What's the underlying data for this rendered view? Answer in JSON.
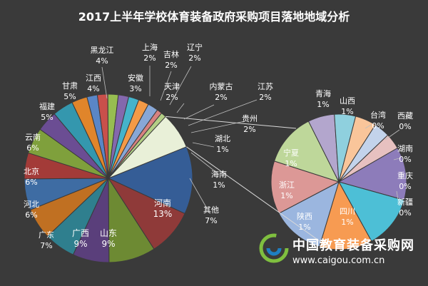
{
  "title": "2017上半年学校体育装备政府采购项目落地地域分析",
  "chart_data": {
    "type": "bar-of-pie",
    "main_pie": [
      {
        "label": "河南",
        "pct": "13%",
        "value": 13,
        "color": "#355d96"
      },
      {
        "label": "山东",
        "pct": "9%",
        "value": 9,
        "color": "#8f3a39"
      },
      {
        "label": "广西",
        "pct": "9%",
        "value": 9,
        "color": "#6d8a33"
      },
      {
        "label": "广东",
        "pct": "7%",
        "value": 7,
        "color": "#5a3f7b"
      },
      {
        "label": "河北",
        "pct": "6%",
        "value": 6,
        "color": "#2f7f8e"
      },
      {
        "label": "北京",
        "pct": "6%",
        "value": 6,
        "color": "#c07022"
      },
      {
        "label": "云南",
        "pct": "6%",
        "value": 6,
        "color": "#3e6ca3"
      },
      {
        "label": "福建",
        "pct": "5%",
        "value": 5,
        "color": "#a33b38"
      },
      {
        "label": "甘肃",
        "pct": "5%",
        "value": 5,
        "color": "#7fa03c"
      },
      {
        "label": "江西",
        "pct": "4%",
        "value": 4,
        "color": "#6b4d93"
      },
      {
        "label": "黑龙江",
        "pct": "4%",
        "value": 4,
        "color": "#3497ae"
      },
      {
        "label": "安徽",
        "pct": "3%",
        "value": 3,
        "color": "#e0852b"
      },
      {
        "label": "上海",
        "pct": "2%",
        "value": 2,
        "color": "#5a86c6"
      },
      {
        "label": "吉林",
        "pct": "2%",
        "value": 2,
        "color": "#c9504b"
      },
      {
        "label": "辽宁",
        "pct": "2%",
        "value": 2,
        "color": "#97bd51"
      },
      {
        "label": "天津",
        "pct": "2%",
        "value": 2,
        "color": "#8468ad"
      },
      {
        "label": "内蒙古",
        "pct": "2%",
        "value": 2,
        "color": "#45b3ca"
      },
      {
        "label": "江苏",
        "pct": "2%",
        "value": 2,
        "color": "#f49a46"
      },
      {
        "label": "贵州",
        "pct": "2%",
        "value": 2,
        "color": "#88a7d6"
      },
      {
        "label": "湖北",
        "pct": "1%",
        "value": 1,
        "color": "#d88280"
      },
      {
        "label": "海南",
        "pct": "1%",
        "value": 1,
        "color": "#b4cf86"
      },
      {
        "label": "其他",
        "pct": "7%",
        "value": 7,
        "color": "#e9f0d8"
      }
    ],
    "secondary_pie": [
      {
        "label": "四川",
        "pct": "1%",
        "value": 1,
        "color": "#8d7cba"
      },
      {
        "label": "陕西",
        "pct": "1%",
        "value": 1,
        "color": "#4dbfd6"
      },
      {
        "label": "浙江",
        "pct": "1%",
        "value": 1,
        "color": "#f79b52"
      },
      {
        "label": "宁夏",
        "pct": "1%",
        "value": 1,
        "color": "#9bb6df"
      },
      {
        "label": "青海",
        "pct": "1%",
        "value": 1,
        "color": "#dc9896"
      },
      {
        "label": "山西",
        "pct": "1%",
        "value": 1,
        "color": "#bed79a"
      },
      {
        "label": "台湾",
        "pct": "0%",
        "value": 0.5,
        "color": "#b3a6cd"
      },
      {
        "label": "西藏",
        "pct": "0%",
        "value": 0.4,
        "color": "#8fd0de"
      },
      {
        "label": "湖南",
        "pct": "0%",
        "value": 0.4,
        "color": "#f9c59a"
      },
      {
        "label": "重庆",
        "pct": "0%",
        "value": 0.3,
        "color": "#c3d3eb"
      },
      {
        "label": "新疆",
        "pct": "0%",
        "value": 0.3,
        "color": "#e7c1c0"
      }
    ]
  },
  "watermark": {
    "name": "中国教育装备采购网",
    "url": "www.caigou.com.cn"
  },
  "colors": {
    "background": "#3a3a3a",
    "text": "#ffffff",
    "connector": "#d9d9d9"
  }
}
